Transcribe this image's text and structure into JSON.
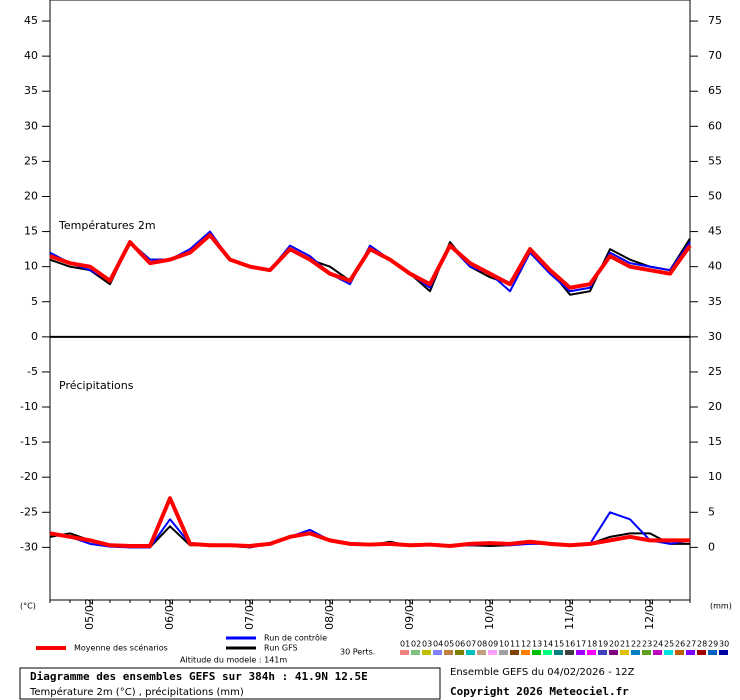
{
  "chart_data": {
    "type": "line",
    "title": "Diagramme des ensembles GEFS sur 384h : 41.9N 12.5E",
    "subtitle": "Température 2m (°C) , précipitations (mm)",
    "run_label": "Ensemble GEFS du 04/02/2026 - 12Z",
    "copyright": "Copyright 2026 Meteociel.fr",
    "altitude": "Altitude du modele : 141m",
    "temp_panel_label": "Températures 2m",
    "precip_panel_label": "Précipitations",
    "y_unit": "(°C)",
    "y2_unit": "(mm)",
    "perts_label": "30 Perts.",
    "categories": [
      null,
      null,
      "05/02",
      null,
      null,
      null,
      "06/02",
      null,
      null,
      null,
      "07/02",
      null,
      null,
      null,
      "08/02",
      null,
      null,
      null,
      "09/02",
      null,
      null,
      null,
      "10/02",
      null,
      null,
      null,
      "11/02",
      null,
      null,
      null,
      "12/02",
      null,
      null
    ],
    "ylim": [
      -37.5,
      48
    ],
    "yticks": [
      -30,
      -25,
      -20,
      -15,
      -10,
      -5,
      0,
      5,
      10,
      15,
      20,
      25,
      30,
      35,
      40,
      45
    ],
    "y2lim": [
      -7.5,
      78
    ],
    "y2ticks": [
      0,
      5,
      10,
      15,
      20,
      25,
      30,
      35,
      40,
      45,
      50,
      55,
      60,
      65,
      70,
      75
    ],
    "series": [
      {
        "name": "Moyenne des scénarios",
        "color": "#ff0000",
        "values": [
          11.5,
          10.5,
          10,
          8,
          13.5,
          10.5,
          11,
          12,
          14.5,
          11,
          10,
          9.5,
          12.5,
          11,
          9,
          8,
          12.5,
          11,
          9,
          7.5,
          13,
          10.5,
          9,
          7.5,
          12.5,
          9.5,
          7,
          7.5,
          11.5,
          10,
          9.5,
          9,
          13
        ],
        "precip_values": [
          2,
          1.5,
          1,
          0.3,
          0.2,
          0.2,
          7,
          0.5,
          0.3,
          0.3,
          0.2,
          0.5,
          1.5,
          2,
          1,
          0.5,
          0.4,
          0.5,
          0.3,
          0.4,
          0.2,
          0.5,
          0.6,
          0.5,
          0.8,
          0.5,
          0.3,
          0.5,
          1,
          1.5,
          1,
          1,
          1
        ]
      },
      {
        "name": "Run de contrôle",
        "color": "#0000ff",
        "values": [
          12,
          10.5,
          9.5,
          8,
          13.5,
          11,
          11,
          12.5,
          15,
          11,
          10,
          9.5,
          13,
          11.5,
          9,
          7.5,
          13,
          11,
          9,
          7,
          13,
          10,
          9,
          6.5,
          12,
          9,
          6.5,
          7,
          12,
          10.5,
          10,
          9.5,
          13.5
        ],
        "precip_values": [
          2,
          1.5,
          0.5,
          0.1,
          0,
          0,
          4,
          0.5,
          0.3,
          0.3,
          0,
          0.5,
          1.5,
          2.5,
          1,
          0.5,
          0.3,
          0.5,
          0.2,
          0.3,
          0.2,
          0.3,
          0.5,
          0.3,
          0.5,
          0.5,
          0.2,
          0.5,
          5,
          4,
          1,
          0.5,
          1
        ]
      },
      {
        "name": "Run GFS",
        "color": "#000000",
        "values": [
          11,
          10,
          9.5,
          7.5,
          13.5,
          11,
          11,
          12,
          14.5,
          11,
          10,
          9.5,
          12.5,
          11,
          10,
          8,
          12.5,
          11,
          9,
          6.5,
          13.5,
          10,
          8.5,
          7.5,
          12.5,
          9.5,
          6,
          6.5,
          12.5,
          11,
          10,
          9.5,
          14
        ],
        "precip_values": [
          1.5,
          2,
          1,
          0.2,
          0,
          0,
          3,
          0.3,
          0.3,
          0.2,
          0,
          0.5,
          1.5,
          2,
          1,
          0.5,
          0.3,
          0.8,
          0.2,
          0.3,
          0.2,
          0.3,
          0.2,
          0.3,
          0.8,
          0.5,
          0.2,
          0.5,
          1.5,
          2,
          2,
          0.5,
          0.5
        ]
      }
    ],
    "members": [
      {
        "name": "01",
        "color": "#f08080"
      },
      {
        "name": "02",
        "color": "#80c080"
      },
      {
        "name": "03",
        "color": "#c0c000"
      },
      {
        "name": "04",
        "color": "#8080ff"
      },
      {
        "name": "05",
        "color": "#c08040"
      },
      {
        "name": "06",
        "color": "#808000"
      },
      {
        "name": "07",
        "color": "#00c0c0"
      },
      {
        "name": "08",
        "color": "#c0a080"
      },
      {
        "name": "09",
        "color": "#ffa0ff"
      },
      {
        "name": "10",
        "color": "#a0a0a0"
      },
      {
        "name": "11",
        "color": "#804000"
      },
      {
        "name": "12",
        "color": "#ff8000"
      },
      {
        "name": "13",
        "color": "#00c000"
      },
      {
        "name": "14",
        "color": "#00ff80"
      },
      {
        "name": "15",
        "color": "#008080"
      },
      {
        "name": "16",
        "color": "#404040"
      },
      {
        "name": "17",
        "color": "#a000ff"
      },
      {
        "name": "18",
        "color": "#ff00ff"
      },
      {
        "name": "19",
        "color": "#4040c0"
      },
      {
        "name": "20",
        "color": "#800080"
      },
      {
        "name": "21",
        "color": "#e0c000"
      },
      {
        "name": "22",
        "color": "#0080c0"
      },
      {
        "name": "23",
        "color": "#60a020"
      },
      {
        "name": "24",
        "color": "#c000c0"
      },
      {
        "name": "25",
        "color": "#00e0e0"
      },
      {
        "name": "26",
        "color": "#c06000"
      },
      {
        "name": "27",
        "color": "#8000ff"
      },
      {
        "name": "28",
        "color": "#a00000"
      },
      {
        "name": "29",
        "color": "#0060c0"
      },
      {
        "name": "30",
        "color": "#0000a0"
      }
    ]
  }
}
